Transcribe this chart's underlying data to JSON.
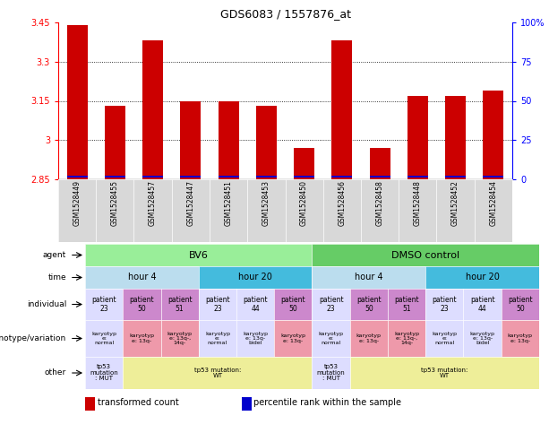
{
  "title": "GDS6083 / 1557876_at",
  "samples": [
    "GSM1528449",
    "GSM1528455",
    "GSM1528457",
    "GSM1528447",
    "GSM1528451",
    "GSM1528453",
    "GSM1528450",
    "GSM1528456",
    "GSM1528458",
    "GSM1528448",
    "GSM1528452",
    "GSM1528454"
  ],
  "bar_values": [
    3.44,
    3.13,
    3.38,
    3.15,
    3.15,
    3.13,
    2.97,
    3.38,
    2.97,
    3.17,
    3.17,
    3.19
  ],
  "bar_base": 2.85,
  "ylim": [
    2.85,
    3.45
  ],
  "yticks": [
    2.85,
    3.0,
    3.15,
    3.3,
    3.45
  ],
  "ytick_labels": [
    "2.85",
    "3",
    "3.15",
    "3.3",
    "3.45"
  ],
  "right_ytick_pcts": [
    0,
    25,
    50,
    75,
    100
  ],
  "bar_color": "#cc0000",
  "percentile_color": "#0000cc",
  "agent_groups": [
    {
      "text": "BV6",
      "start": 0,
      "end": 5,
      "color": "#99ee99"
    },
    {
      "text": "DMSO control",
      "start": 6,
      "end": 11,
      "color": "#66cc66"
    }
  ],
  "time_groups": [
    {
      "text": "hour 4",
      "start": 0,
      "end": 2,
      "color": "#bbddee"
    },
    {
      "text": "hour 20",
      "start": 3,
      "end": 5,
      "color": "#44bbdd"
    },
    {
      "text": "hour 4",
      "start": 6,
      "end": 8,
      "color": "#bbddee"
    },
    {
      "text": "hour 20",
      "start": 9,
      "end": 11,
      "color": "#44bbdd"
    }
  ],
  "individual_cells": [
    {
      "text": "patient\n23",
      "color": "#ddddff"
    },
    {
      "text": "patient\n50",
      "color": "#cc88cc"
    },
    {
      "text": "patient\n51",
      "color": "#cc88cc"
    },
    {
      "text": "patient\n23",
      "color": "#ddddff"
    },
    {
      "text": "patient\n44",
      "color": "#ddddff"
    },
    {
      "text": "patient\n50",
      "color": "#cc88cc"
    },
    {
      "text": "patient\n23",
      "color": "#ddddff"
    },
    {
      "text": "patient\n50",
      "color": "#cc88cc"
    },
    {
      "text": "patient\n51",
      "color": "#cc88cc"
    },
    {
      "text": "patient\n23",
      "color": "#ddddff"
    },
    {
      "text": "patient\n44",
      "color": "#ddddff"
    },
    {
      "text": "patient\n50",
      "color": "#cc88cc"
    }
  ],
  "genotype_cells": [
    {
      "text": "karyotyp\ne:\nnormal",
      "color": "#ddddff"
    },
    {
      "text": "karyotyp\ne: 13q-",
      "color": "#ee99aa"
    },
    {
      "text": "karyotyp\ne: 13q-,\n14q-",
      "color": "#ee99aa"
    },
    {
      "text": "karyotyp\ne:\nnormal",
      "color": "#ddddff"
    },
    {
      "text": "karyotyp\ne: 13q-\nbidel",
      "color": "#ddddff"
    },
    {
      "text": "karyotyp\ne: 13q-",
      "color": "#ee99aa"
    },
    {
      "text": "karyotyp\ne:\nnormal",
      "color": "#ddddff"
    },
    {
      "text": "karyotyp\ne: 13q-",
      "color": "#ee99aa"
    },
    {
      "text": "karyotyp\ne: 13q-,\n14q-",
      "color": "#ee99aa"
    },
    {
      "text": "karyotyp\ne:\nnormal",
      "color": "#ddddff"
    },
    {
      "text": "karyotyp\ne: 13q-\nbidel",
      "color": "#ddddff"
    },
    {
      "text": "karyotyp\ne: 13q-",
      "color": "#ee99aa"
    }
  ],
  "other_groups": [
    {
      "text": "tp53\nmutation\n: MUT",
      "start": 0,
      "end": 0,
      "color": "#ddddff"
    },
    {
      "text": "tp53 mutation:\nWT",
      "start": 1,
      "end": 5,
      "color": "#eeee99"
    },
    {
      "text": "tp53\nmutation\n: MUT",
      "start": 6,
      "end": 6,
      "color": "#ddddff"
    },
    {
      "text": "tp53 mutation:\nWT",
      "start": 7,
      "end": 11,
      "color": "#eeee99"
    }
  ],
  "row_labels": [
    "agent",
    "time",
    "individual",
    "genotype/variation",
    "other"
  ],
  "legend_items": [
    {
      "label": "transformed count",
      "color": "#cc0000"
    },
    {
      "label": "percentile rank within the sample",
      "color": "#0000cc"
    }
  ]
}
